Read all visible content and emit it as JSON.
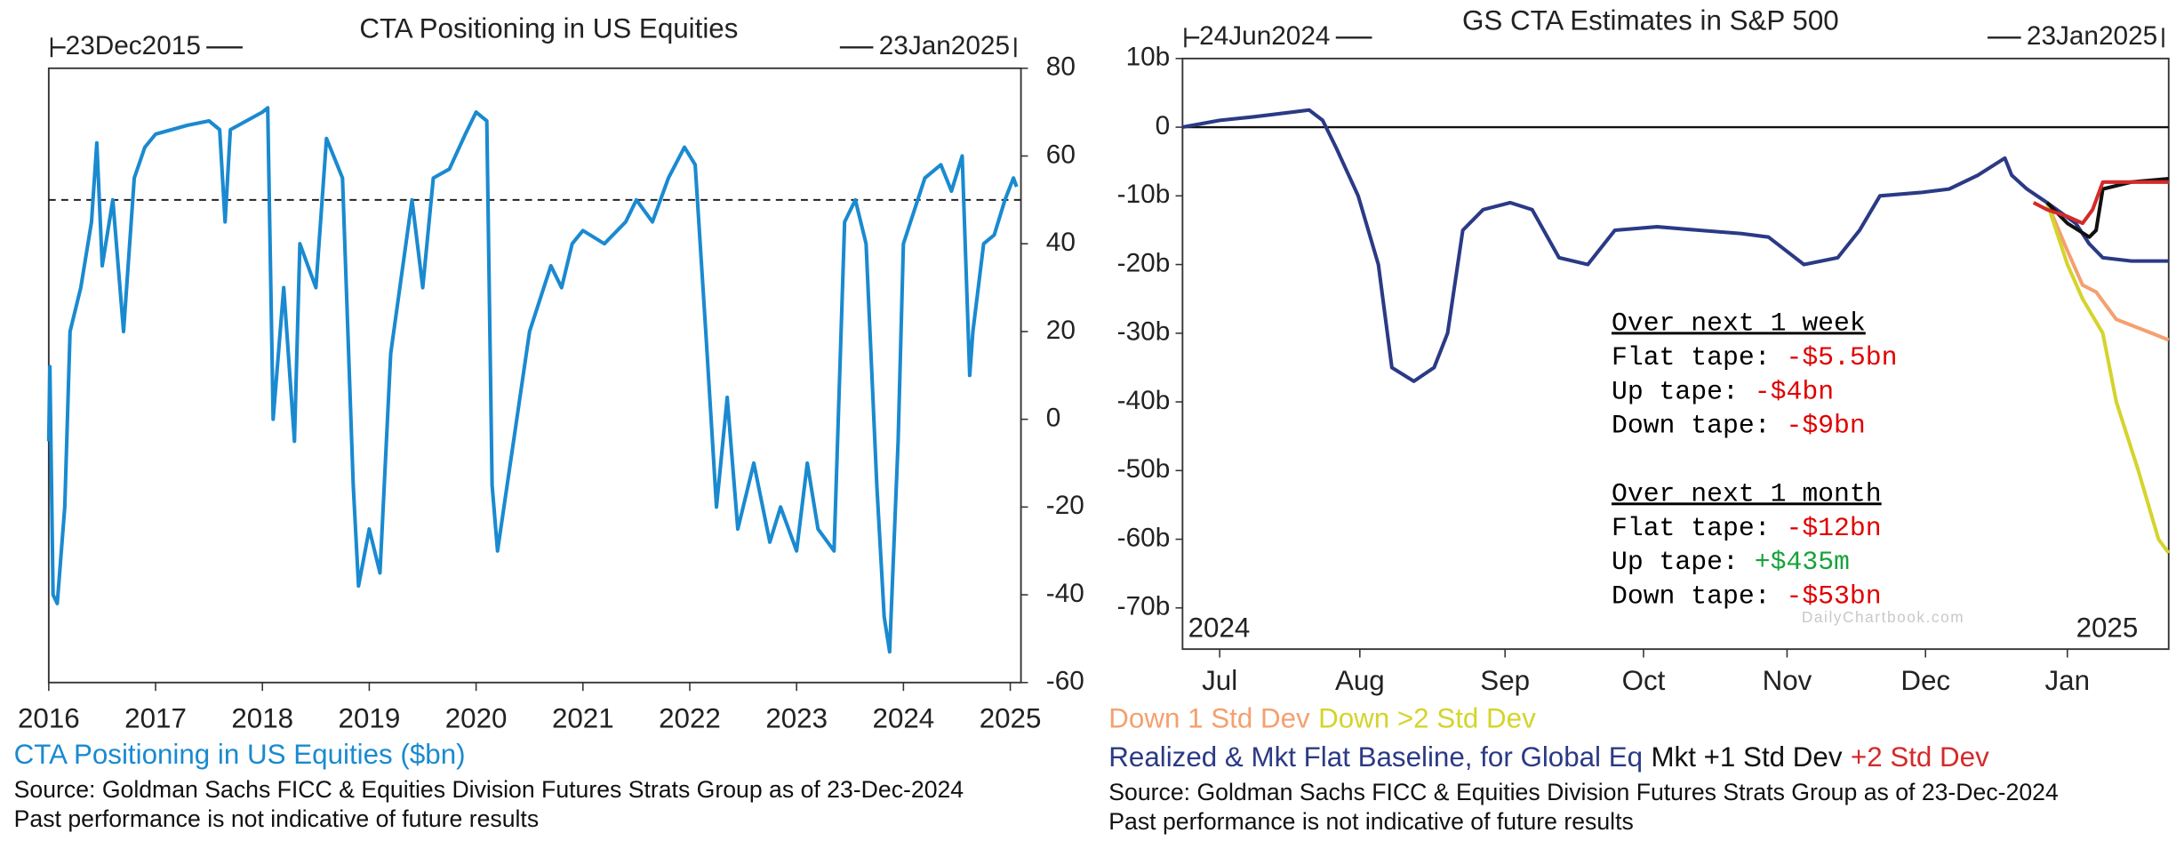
{
  "chart_data": [
    {
      "type": "line",
      "title": "CTA Positioning in US Equities",
      "start_label": "23Dec2015",
      "end_label": "23Jan2025",
      "xlim": [
        2016,
        2025.1
      ],
      "xticks": [
        2016,
        2017,
        2018,
        2019,
        2020,
        2021,
        2022,
        2023,
        2024,
        2025
      ],
      "ylim": [
        -60,
        80
      ],
      "yticks": [
        -60,
        -40,
        -20,
        0,
        20,
        40,
        60,
        80
      ],
      "reference_line": 50,
      "xlabel": "CTA Positioning in US Equities ($bn)",
      "source": "Source: Goldman Sachs FICC & Equities Division Futures Strats Group as of 23-Dec-2024",
      "note": "Past performance is not indicative of future results",
      "series": [
        {
          "name": "CTA Positioning in US Equities ($bn)",
          "color": "#1a8ad0",
          "x": [
            2016.0,
            2016.01,
            2016.04,
            2016.08,
            2016.15,
            2016.2,
            2016.3,
            2016.4,
            2016.45,
            2016.5,
            2016.6,
            2016.7,
            2016.8,
            2016.9,
            2017.0,
            2017.3,
            2017.5,
            2017.6,
            2017.65,
            2017.7,
            2018.0,
            2018.05,
            2018.1,
            2018.2,
            2018.3,
            2018.35,
            2018.5,
            2018.6,
            2018.75,
            2018.85,
            2018.9,
            2019.0,
            2019.1,
            2019.2,
            2019.4,
            2019.5,
            2019.6,
            2019.75,
            2019.9,
            2020.0,
            2020.1,
            2020.15,
            2020.2,
            2020.35,
            2020.5,
            2020.7,
            2020.8,
            2020.9,
            2021.0,
            2021.2,
            2021.4,
            2021.5,
            2021.65,
            2021.8,
            2021.95,
            2022.05,
            2022.15,
            2022.25,
            2022.35,
            2022.45,
            2022.6,
            2022.75,
            2022.85,
            2023.0,
            2023.1,
            2023.2,
            2023.35,
            2023.45,
            2023.55,
            2023.65,
            2023.75,
            2023.82,
            2023.87,
            2023.95,
            2024.0,
            2024.2,
            2024.35,
            2024.45,
            2024.55,
            2024.62,
            2024.65,
            2024.75,
            2024.85,
            2024.95,
            2025.03,
            2025.06
          ],
          "values": [
            -5,
            12,
            -40,
            -42,
            -20,
            20,
            30,
            45,
            63,
            35,
            50,
            20,
            55,
            62,
            65,
            67,
            68,
            66,
            45,
            66,
            70,
            71,
            0,
            30,
            -5,
            40,
            30,
            64,
            55,
            -15,
            -38,
            -25,
            -35,
            15,
            50,
            30,
            55,
            57,
            65,
            70,
            68,
            -15,
            -30,
            -5,
            20,
            35,
            30,
            40,
            43,
            40,
            45,
            50,
            45,
            55,
            62,
            58,
            20,
            -20,
            5,
            -25,
            -10,
            -28,
            -20,
            -30,
            -10,
            -25,
            -30,
            45,
            50,
            40,
            -15,
            -45,
            -53,
            -5,
            40,
            55,
            58,
            52,
            60,
            10,
            20,
            40,
            42,
            50,
            55,
            53
          ]
        }
      ]
    },
    {
      "type": "line",
      "title": "GS CTA Estimates in S&P 500",
      "start_label": "24Jun2024",
      "end_label": "23Jan2025",
      "xlim": [
        2024.478,
        2025.062
      ],
      "xticks": [
        {
          "value": 2024.5,
          "label": "Jul"
        },
        {
          "value": 2024.583,
          "label": "Aug"
        },
        {
          "value": 2024.669,
          "label": "Sep"
        },
        {
          "value": 2024.751,
          "label": "Oct"
        },
        {
          "value": 2024.836,
          "label": "Nov"
        },
        {
          "value": 2024.918,
          "label": "Dec"
        },
        {
          "value": 2025.002,
          "label": "Jan"
        }
      ],
      "ylim": [
        -76,
        10
      ],
      "yticks": [
        {
          "value": 10,
          "label": "10b"
        },
        0,
        {
          "value": -10,
          "label": "-10b"
        },
        {
          "value": -20,
          "label": "-20b"
        },
        {
          "value": -30,
          "label": "-30b"
        },
        {
          "value": -40,
          "label": "-40b"
        },
        {
          "value": -50,
          "label": "-50b"
        },
        {
          "value": -60,
          "label": "-60b"
        },
        {
          "value": -70,
          "label": "-70b"
        }
      ],
      "zero_line": 0,
      "period_labels": [
        "2024",
        "2025"
      ],
      "watermark": "DailyChartbook.com",
      "source": "Source: Goldman Sachs FICC & Equities Division Futures Strats Group as of 23-Dec-2024",
      "note": "Past performance is not indicative of future results",
      "text_box": [
        {
          "heading": "Over next 1 week",
          "rows": [
            {
              "label": "Flat tape:",
              "value": "-$5.5bn",
              "color": "#e00000"
            },
            {
              "label": "Up tape:",
              "value": "-$4bn",
              "color": "#e00000"
            },
            {
              "label": "Down tape:",
              "value": "-$9bn",
              "color": "#e00000"
            }
          ]
        },
        {
          "heading": "Over next 1 month",
          "rows": [
            {
              "label": "Flat tape:",
              "value": "-$12bn",
              "color": "#e00000"
            },
            {
              "label": "Up tape:",
              "value": "+$435m",
              "color": "#16a33a"
            },
            {
              "label": "Down tape:",
              "value": "-$53bn",
              "color": "#e00000"
            }
          ]
        }
      ],
      "series": [
        {
          "name": "Down 1 Std Dev",
          "color": "#f4a070",
          "x": [
            2024.99,
            2025.002,
            2025.011,
            2025.019,
            2025.031,
            2025.052,
            2025.062
          ],
          "values": [
            -11,
            -18,
            -23,
            -24,
            -28,
            -30,
            -31
          ]
        },
        {
          "name": "Down >2 Std Dev",
          "color": "#d4d42c",
          "x": [
            2024.99,
            2025.002,
            2025.011,
            2025.023,
            2025.031,
            2025.044,
            2025.056,
            2025.062
          ],
          "values": [
            -11,
            -20,
            -25,
            -30,
            -40,
            -50,
            -60,
            -62
          ]
        },
        {
          "name": "Realized & Mkt Flat Baseline, for Global Eq",
          "color": "#2b3a85",
          "x": [
            2024.478,
            2024.5,
            2024.52,
            2024.553,
            2024.561,
            2024.569,
            2024.582,
            2024.594,
            2024.602,
            2024.615,
            2024.627,
            2024.635,
            2024.644,
            2024.656,
            2024.672,
            2024.685,
            2024.701,
            2024.718,
            2024.734,
            2024.759,
            2024.784,
            2024.809,
            2024.825,
            2024.846,
            2024.866,
            2024.879,
            2024.891,
            2024.916,
            2024.932,
            2024.949,
            2024.965,
            2024.969,
            2024.978,
            2024.99,
            2025.007,
            2025.015,
            2025.023,
            2025.04,
            2025.062
          ],
          "values": [
            0,
            1,
            1.5,
            2.5,
            1,
            -3,
            -10,
            -20,
            -35,
            -37,
            -35,
            -30,
            -15,
            -12,
            -11,
            -12,
            -19,
            -20,
            -15,
            -14.5,
            -15,
            -15.5,
            -16,
            -20,
            -19,
            -15,
            -10,
            -9.5,
            -9,
            -7,
            -4.5,
            -7,
            -9,
            -11,
            -14,
            -17,
            -19,
            -19.5,
            -19.5
          ]
        },
        {
          "name": "Mkt +1 Std Dev",
          "color": "#111111",
          "x": [
            2024.99,
            2025.002,
            2025.015,
            2025.019,
            2025.023,
            2025.04,
            2025.062
          ],
          "values": [
            -11,
            -14,
            -16,
            -15,
            -9,
            -8,
            -7.5
          ]
        },
        {
          "name": "+2 Std Dev",
          "color": "#d42a2a",
          "x": [
            2024.982,
            2024.99,
            2025.002,
            2025.011,
            2025.017,
            2025.023,
            2025.062
          ],
          "values": [
            -11,
            -12,
            -13,
            -14,
            -12,
            -8,
            -8
          ]
        }
      ]
    }
  ]
}
